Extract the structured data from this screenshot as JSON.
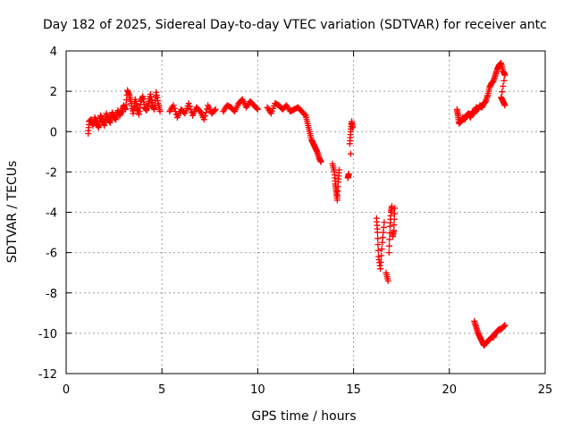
{
  "chart_data": {
    "type": "scatter",
    "title": "Day 182 of 2025, Sidereal Day-to-day VTEC variation (SDTVAR) for receiver antc",
    "xlabel": "GPS time / hours",
    "ylabel": "SDTVAR / TECUs",
    "xlim": [
      0,
      25
    ],
    "ylim": [
      -12,
      4
    ],
    "xticks": [
      "0",
      "5",
      "10",
      "15",
      "20",
      "25"
    ],
    "yticks": [
      "4",
      "2",
      "0",
      "-2",
      "-4",
      "-6",
      "-8",
      "-10",
      "-12"
    ],
    "grid": true,
    "marker": "plus",
    "series_color": "#ff0000",
    "series": [
      {
        "name": "SDTVAR",
        "points": [
          [
            1.15,
            -0.1
          ],
          [
            1.2,
            0.5
          ],
          [
            1.3,
            0.6
          ],
          [
            1.4,
            0.3
          ],
          [
            1.5,
            0.7
          ],
          [
            1.6,
            0.4
          ],
          [
            1.7,
            0.2
          ],
          [
            1.8,
            0.8
          ],
          [
            1.9,
            0.55
          ],
          [
            2.0,
            0.3
          ],
          [
            2.1,
            0.9
          ],
          [
            2.2,
            0.6
          ],
          [
            2.3,
            0.45
          ],
          [
            2.4,
            0.95
          ],
          [
            2.5,
            0.7
          ],
          [
            2.6,
            0.6
          ],
          [
            2.7,
            1.05
          ],
          [
            2.8,
            0.8
          ],
          [
            2.9,
            1.0
          ],
          [
            3.0,
            1.3
          ],
          [
            3.1,
            1.1
          ],
          [
            3.2,
            2.05
          ],
          [
            3.3,
            1.8
          ],
          [
            3.4,
            1.4
          ],
          [
            3.5,
            0.9
          ],
          [
            3.6,
            1.6
          ],
          [
            3.7,
            1.2
          ],
          [
            3.8,
            0.85
          ],
          [
            3.9,
            1.5
          ],
          [
            4.0,
            1.75
          ],
          [
            4.1,
            1.2
          ],
          [
            4.2,
            1.05
          ],
          [
            4.3,
            1.4
          ],
          [
            4.4,
            1.85
          ],
          [
            4.5,
            1.3
          ],
          [
            4.6,
            1.1
          ],
          [
            4.7,
            1.95
          ],
          [
            4.8,
            1.4
          ],
          [
            4.9,
            1.0
          ],
          [
            5.4,
            1.0
          ],
          [
            5.6,
            1.3
          ],
          [
            5.8,
            0.7
          ],
          [
            6.0,
            1.1
          ],
          [
            6.2,
            0.9
          ],
          [
            6.4,
            1.4
          ],
          [
            6.6,
            0.8
          ],
          [
            6.8,
            1.2
          ],
          [
            7.0,
            1.0
          ],
          [
            7.2,
            0.6
          ],
          [
            7.4,
            1.3
          ],
          [
            7.6,
            0.9
          ],
          [
            7.8,
            1.1
          ],
          [
            8.2,
            1.0
          ],
          [
            8.4,
            1.3
          ],
          [
            8.6,
            1.2
          ],
          [
            8.8,
            1.0
          ],
          [
            9.0,
            1.4
          ],
          [
            9.2,
            1.6
          ],
          [
            9.4,
            1.2
          ],
          [
            9.6,
            1.5
          ],
          [
            9.8,
            1.3
          ],
          [
            10.0,
            1.1
          ],
          [
            10.5,
            1.2
          ],
          [
            10.7,
            0.9
          ],
          [
            10.9,
            1.4
          ],
          [
            11.1,
            1.3
          ],
          [
            11.3,
            1.1
          ],
          [
            11.5,
            1.3
          ],
          [
            11.7,
            1.0
          ],
          [
            11.9,
            1.1
          ],
          [
            12.1,
            1.2
          ],
          [
            12.3,
            1.0
          ],
          [
            12.5,
            0.8
          ],
          [
            12.6,
            0.4
          ],
          [
            12.7,
            0.0
          ],
          [
            12.8,
            -0.4
          ],
          [
            12.9,
            -0.6
          ],
          [
            13.0,
            -0.8
          ],
          [
            13.1,
            -1.0
          ],
          [
            13.2,
            -1.3
          ],
          [
            13.3,
            -1.5
          ],
          [
            13.9,
            -1.6
          ],
          [
            14.0,
            -2.0
          ],
          [
            14.05,
            -2.6
          ],
          [
            14.1,
            -3.0
          ],
          [
            14.15,
            -3.4
          ],
          [
            14.2,
            -2.5
          ],
          [
            14.25,
            -1.9
          ],
          [
            14.7,
            -2.3
          ],
          [
            14.75,
            -2.1
          ],
          [
            14.8,
            -0.6
          ],
          [
            14.85,
            0.0
          ],
          [
            14.9,
            0.5
          ],
          [
            14.95,
            0.2
          ],
          [
            14.85,
            -1.1
          ],
          [
            16.2,
            -4.3
          ],
          [
            16.25,
            -5.0
          ],
          [
            16.3,
            -6.2
          ],
          [
            16.4,
            -6.8
          ],
          [
            16.5,
            -5.5
          ],
          [
            16.6,
            -4.5
          ],
          [
            16.7,
            -7.0
          ],
          [
            16.8,
            -7.4
          ],
          [
            16.85,
            -6.0
          ],
          [
            16.9,
            -4.7
          ],
          [
            16.95,
            -4.0
          ],
          [
            17.0,
            -3.7
          ],
          [
            17.05,
            -5.2
          ],
          [
            17.1,
            -4.9
          ],
          [
            17.15,
            -3.8
          ],
          [
            20.4,
            1.1
          ],
          [
            20.45,
            0.8
          ],
          [
            20.5,
            0.4
          ],
          [
            20.6,
            0.5
          ],
          [
            20.7,
            0.7
          ],
          [
            20.8,
            0.6
          ],
          [
            20.9,
            0.8
          ],
          [
            21.0,
            0.9
          ],
          [
            21.1,
            0.7
          ],
          [
            21.2,
            1.0
          ],
          [
            21.3,
            0.9
          ],
          [
            21.4,
            1.2
          ],
          [
            21.5,
            1.1
          ],
          [
            21.6,
            1.3
          ],
          [
            21.7,
            1.2
          ],
          [
            21.8,
            1.4
          ],
          [
            21.9,
            1.5
          ],
          [
            22.0,
            1.8
          ],
          [
            22.1,
            2.2
          ],
          [
            22.2,
            2.4
          ],
          [
            22.3,
            2.5
          ],
          [
            22.4,
            2.8
          ],
          [
            22.5,
            3.1
          ],
          [
            22.6,
            3.3
          ],
          [
            22.7,
            3.4
          ],
          [
            22.8,
            3.0
          ],
          [
            22.9,
            2.8
          ],
          [
            22.7,
            1.7
          ],
          [
            22.8,
            1.5
          ],
          [
            22.9,
            1.3
          ],
          [
            21.3,
            -9.4
          ],
          [
            21.4,
            -9.7
          ],
          [
            21.5,
            -10.0
          ],
          [
            21.6,
            -10.2
          ],
          [
            21.7,
            -10.4
          ],
          [
            21.8,
            -10.6
          ],
          [
            21.9,
            -10.5
          ],
          [
            22.0,
            -10.4
          ],
          [
            22.1,
            -10.3
          ],
          [
            22.2,
            -10.2
          ],
          [
            22.3,
            -10.2
          ],
          [
            22.4,
            -10.0
          ],
          [
            22.5,
            -9.9
          ],
          [
            22.6,
            -9.8
          ],
          [
            22.7,
            -9.8
          ],
          [
            22.8,
            -9.7
          ],
          [
            22.9,
            -9.6
          ]
        ]
      }
    ]
  }
}
